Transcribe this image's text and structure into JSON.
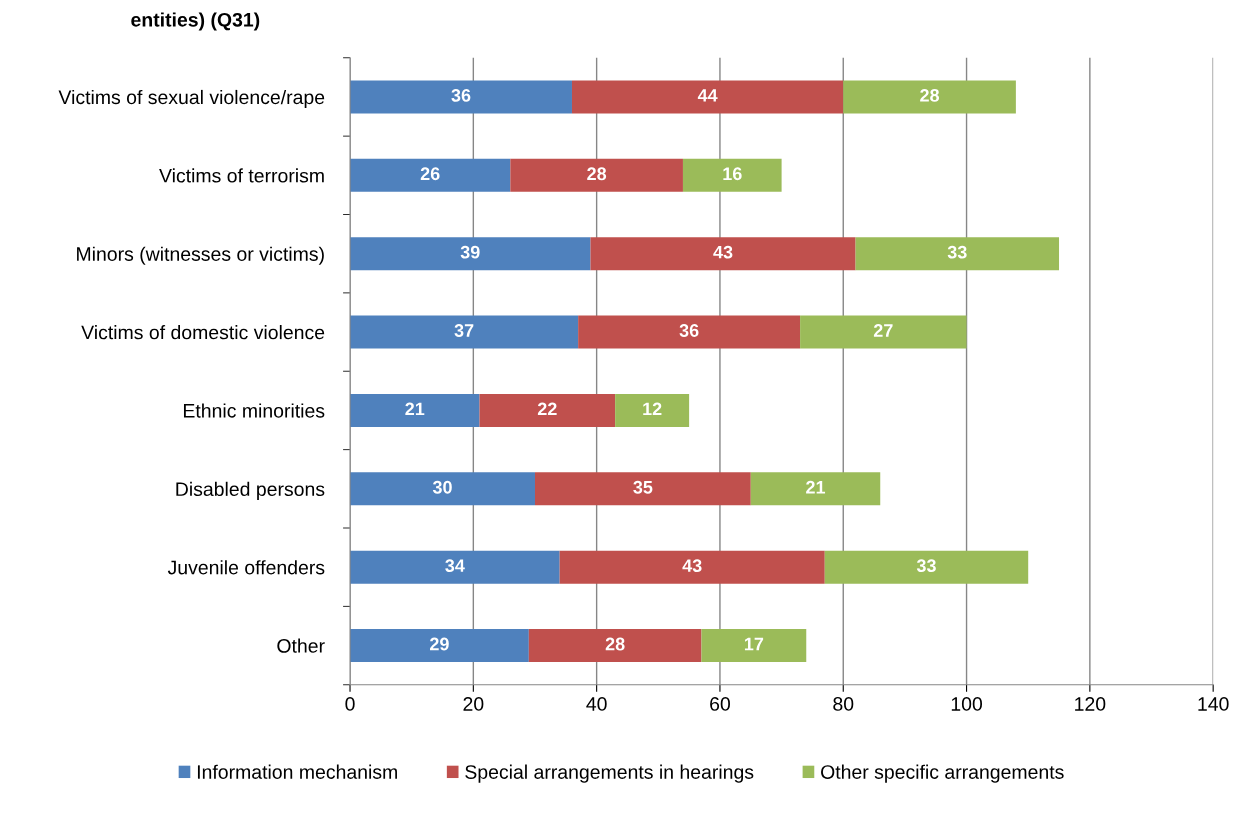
{
  "chart_data": {
    "type": "bar",
    "orientation": "horizontal",
    "stacked": true,
    "title": "entities) (Q31)",
    "categories": [
      "Victims of sexual violence/rape",
      "Victims of terrorism",
      "Minors (witnesses or victims)",
      "Victims of domestic violence",
      "Ethnic minorities",
      "Disabled persons",
      "Juvenile offenders",
      "Other"
    ],
    "series": [
      {
        "name": "Information mechanism",
        "color": "#4f81bd",
        "values": [
          36,
          26,
          39,
          37,
          21,
          30,
          34,
          29
        ]
      },
      {
        "name": "Special arrangements in hearings",
        "color": "#c0504d",
        "values": [
          44,
          28,
          43,
          36,
          22,
          35,
          43,
          28
        ]
      },
      {
        "name": "Other specific arrangements",
        "color": "#9bbb59",
        "values": [
          28,
          16,
          33,
          27,
          12,
          21,
          33,
          17
        ]
      }
    ],
    "xlim": [
      0,
      140
    ],
    "xticks": [
      0,
      20,
      40,
      60,
      80,
      100,
      120,
      140
    ],
    "grid": "x",
    "legend": "bottom",
    "data_labels": true
  }
}
